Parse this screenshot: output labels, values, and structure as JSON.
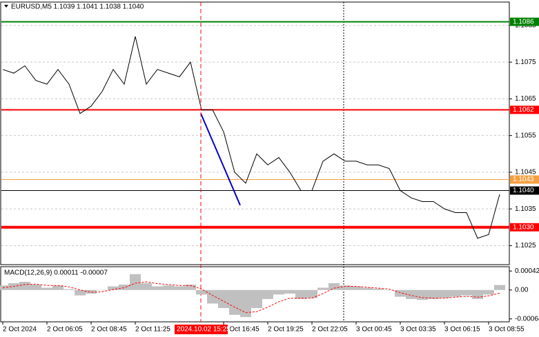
{
  "chart_data": [
    {
      "type": "line",
      "title": "EURUSD,M5  1.1039 1.1041 1.1038 1.1040",
      "color": "#000000",
      "categories": [
        "2 Oct 2024",
        null,
        null,
        null,
        "2 Oct 06:05",
        null,
        null,
        null,
        "2 Oct 08:45",
        null,
        null,
        null,
        "2 Oct 11:25",
        null,
        null,
        null,
        null,
        null,
        null,
        null,
        "2 Oct 16:45",
        null,
        null,
        null,
        "2 Oct 19:25",
        null,
        null,
        null,
        "2 Oct 22:05",
        null,
        null,
        null,
        "3 Oct 00:45",
        null,
        null,
        null,
        "3 Oct 03:35",
        null,
        null,
        null,
        "3 Oct 06:15",
        null,
        null,
        null,
        "3 Oct 08:55",
        null
      ],
      "values": [
        1.1073,
        1.1072,
        1.1074,
        1.107,
        1.1069,
        1.1073,
        1.1069,
        1.1061,
        1.1063,
        1.1067,
        1.1073,
        1.1069,
        1.1082,
        1.1069,
        1.1073,
        1.1072,
        1.1071,
        1.1075,
        1.1062,
        1.1062,
        1.1056,
        1.1045,
        1.1042,
        1.105,
        1.1047,
        1.1049,
        1.1045,
        1.104,
        1.104,
        1.1048,
        1.105,
        1.1048,
        1.1048,
        1.1047,
        1.1047,
        1.1046,
        1.104,
        1.1038,
        1.1037,
        1.1037,
        1.1035,
        1.1034,
        1.1034,
        1.1027,
        1.1028,
        1.1039
      ],
      "ylim": [
        1.102,
        1.1091
      ],
      "yticks": [
        1.1085,
        1.1075,
        1.1065,
        1.1055,
        1.1045,
        1.1035,
        1.1025
      ],
      "grid": true,
      "levels": [
        {
          "value": 1.1086,
          "color": "#008000",
          "width": 2
        },
        {
          "value": 1.1062,
          "color": "#ff0000",
          "width": 2
        },
        {
          "value": 1.1043,
          "color": "#f5a040",
          "width": 1
        },
        {
          "value": 1.104,
          "label": "1.1040",
          "color": "#000000",
          "width": 1
        },
        {
          "value": 1.103,
          "label": "1.1030",
          "color": "#ff0000",
          "width": 4
        }
      ],
      "trendline": {
        "color": "#0000cc",
        "values": [
          1.1061,
          1.1036
        ]
      },
      "crosshair": {
        "label": "2024.10.02 15:25",
        "color": "#ff0000"
      }
    },
    {
      "type": "macd",
      "title": "MACD(12,26,9) 0.00011 -0.00007",
      "histogram": {
        "color": "#c0c0c0",
        "values": [
          0.0001,
          0.00015,
          0.00018,
          0.00012,
          5e-05,
          0.0001,
          2e-05,
          -0.00012,
          -8e-05,
          0,
          8e-05,
          0.00012,
          0.00035,
          0.00015,
          8e-05,
          0.0001,
          8e-05,
          0.00012,
          -0.0001,
          -0.0003,
          -0.0004,
          -0.00055,
          -0.0006,
          -0.0004,
          -0.0002,
          -0.0001,
          -8e-05,
          -0.0002,
          -0.00018,
          5e-05,
          0.00015,
          0.0001,
          8e-05,
          5e-05,
          3e-05,
          0,
          -0.00015,
          -0.0002,
          -0.00022,
          -0.0002,
          -0.00018,
          -0.00015,
          -0.00012,
          -0.0002,
          -0.0001,
          0.00011
        ]
      },
      "signal": {
        "color": "#ff0000",
        "values": [
          5e-05,
          8e-05,
          0.00012,
          0.00013,
          0.0001,
          0.0001,
          7e-05,
          0,
          -5e-05,
          -4e-05,
          1e-05,
          5e-05,
          0.00015,
          0.00018,
          0.00014,
          0.00012,
          0.0001,
          0.0001,
          2e-05,
          -0.00012,
          -0.00025,
          -0.00038,
          -0.0005,
          -0.00048,
          -0.00038,
          -0.00026,
          -0.00018,
          -0.00018,
          -0.00018,
          -8e-05,
          4e-05,
          8e-05,
          8e-05,
          6e-05,
          4e-05,
          2e-05,
          -6e-05,
          -0.00012,
          -0.00017,
          -0.00018,
          -0.00018,
          -0.00016,
          -0.00014,
          -0.00016,
          -0.00013,
          -7e-05
        ]
      },
      "ylim": [
        -0.00069,
        0.0005
      ],
      "yticks": [
        0.00042,
        {
          "value": 0,
          "label": "0.00"
        },
        -0.00064
      ]
    }
  ]
}
